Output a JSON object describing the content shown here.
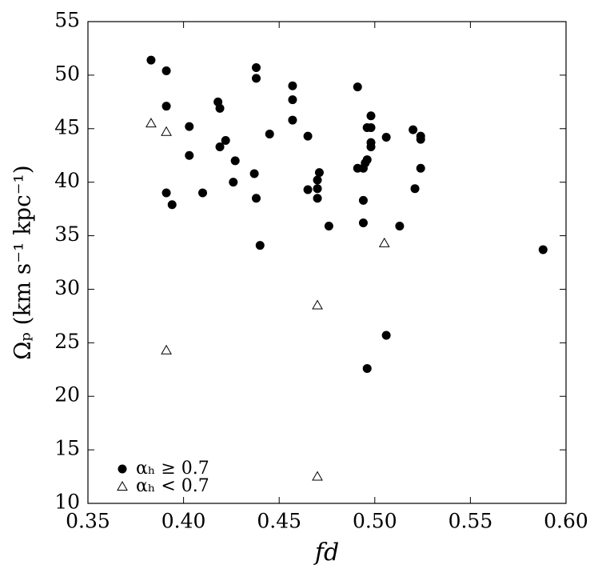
{
  "chart_data": {
    "type": "scatter",
    "x_label": "fd",
    "y_label": "Ωₚ (km s⁻¹ kpc⁻¹)",
    "xlim": [
      0.35,
      0.6
    ],
    "ylim": [
      10,
      55
    ],
    "xticks": [
      0.35,
      {
        "value": 0.4,
        "label": "0.40"
      },
      0.45,
      {
        "value": 0.5,
        "label": "0.50"
      },
      0.55,
      {
        "value": 0.6,
        "label": "0.60"
      }
    ],
    "yticks": [
      10,
      15,
      20,
      25,
      30,
      35,
      40,
      45,
      50,
      55
    ],
    "grid": false,
    "legend": "lower left",
    "series": [
      {
        "name": "αₕ ≥ 0.7",
        "color": "#000000",
        "marker": "circle",
        "x": [
          0.383,
          0.391,
          0.391,
          0.391,
          0.394,
          0.403,
          0.403,
          0.41,
          0.418,
          0.419,
          0.419,
          0.422,
          0.427,
          0.426,
          0.437,
          0.438,
          0.438,
          0.438,
          0.44,
          0.445,
          0.457,
          0.457,
          0.457,
          0.465,
          0.465,
          0.47,
          0.47,
          0.471,
          0.47,
          0.476,
          0.491,
          0.491,
          0.494,
          0.496,
          0.495,
          0.498,
          0.496,
          0.498,
          0.498,
          0.498,
          0.494,
          0.494,
          0.506,
          0.496,
          0.506,
          0.513,
          0.52,
          0.521,
          0.524,
          0.524,
          0.524,
          0.588
        ],
        "values": [
          51.4,
          50.4,
          47.1,
          39.0,
          37.9,
          45.2,
          42.5,
          39.0,
          47.5,
          46.9,
          43.3,
          43.9,
          42.0,
          40.0,
          40.8,
          50.7,
          49.7,
          38.5,
          34.1,
          44.5,
          49.0,
          47.7,
          45.8,
          44.3,
          39.3,
          38.5,
          40.2,
          40.9,
          39.4,
          35.9,
          48.9,
          41.3,
          41.3,
          42.1,
          41.8,
          46.2,
          45.1,
          45.1,
          43.7,
          43.3,
          38.3,
          36.2,
          44.2,
          22.6,
          25.7,
          35.9,
          44.9,
          39.4,
          44.3,
          44.0,
          41.3,
          33.7
        ]
      },
      {
        "name": "αₕ < 0.7",
        "color": "#000000",
        "marker": "triangle",
        "x": [
          0.383,
          0.391,
          0.391,
          0.47,
          0.505,
          0.47
        ],
        "values": [
          45.5,
          44.7,
          24.3,
          28.5,
          34.3,
          12.5
        ]
      }
    ]
  }
}
